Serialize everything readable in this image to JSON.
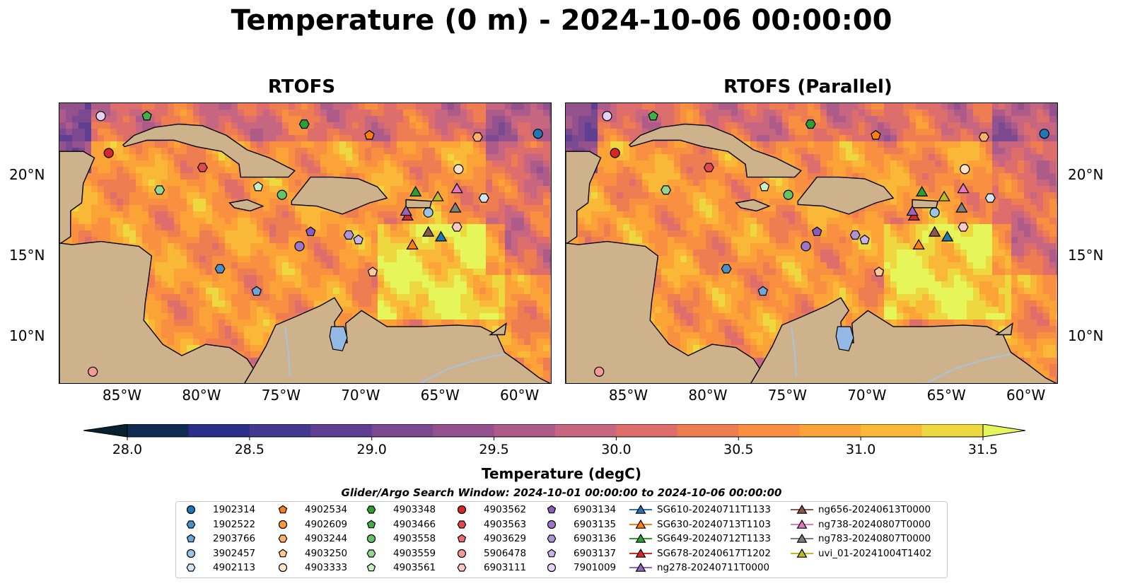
{
  "title": "Temperature (0 m) - 2024-10-06 00:00:00",
  "panels": [
    {
      "title": "RTOFS"
    },
    {
      "title": "RTOFS (Parallel)"
    }
  ],
  "map_extent": {
    "lon": [
      -89,
      -58
    ],
    "lat": [
      7,
      24.5
    ]
  },
  "lon_ticks": [
    "85°W",
    "80°W",
    "75°W",
    "70°W",
    "65°W",
    "60°W"
  ],
  "lat_ticks": [
    "20°N",
    "15°N",
    "10°N"
  ],
  "colors": {
    "land": "#cdb28b",
    "lake": "#94b9e4",
    "river": "#a9c4dc",
    "colormap": [
      "#09202e",
      "#0f2b52",
      "#2a2f87",
      "#45388f",
      "#5f3f91",
      "#7a4990",
      "#93528e",
      "#ad5c89",
      "#c66681",
      "#de6e6c",
      "#ef7d52",
      "#f98f40",
      "#fba337",
      "#f9b837",
      "#eed83f",
      "#e5f55a"
    ]
  },
  "colorbar": {
    "label": "Temperature (degC)",
    "ticks": [
      "28.0",
      "28.5",
      "29.0",
      "29.5",
      "30.0",
      "30.5",
      "31.0",
      "31.5"
    ],
    "range": [
      28.0,
      31.5
    ]
  },
  "legend": {
    "title": "Glider/Argo Search Window: 2024-10-01 00:00:00 to 2024-10-06 00:00:00",
    "items": [
      {
        "label": "1902314",
        "marker": "circle",
        "color": "#1f77b4"
      },
      {
        "label": "1902522",
        "marker": "hexagon",
        "color": "#4a8fc7"
      },
      {
        "label": "2903766",
        "marker": "pentagon",
        "color": "#6ea6d8"
      },
      {
        "label": "3902457",
        "marker": "circle",
        "color": "#9ac3e6"
      },
      {
        "label": "4902113",
        "marker": "hexagon",
        "color": "#d2e5f4"
      },
      {
        "label": "4902534",
        "marker": "pentagon",
        "color": "#ff7f0e"
      },
      {
        "label": "4902609",
        "marker": "circle",
        "color": "#ff9a3c"
      },
      {
        "label": "4903244",
        "marker": "hexagon",
        "color": "#ffb067"
      },
      {
        "label": "4903250",
        "marker": "pentagon",
        "color": "#ffca96"
      },
      {
        "label": "4903333",
        "marker": "circle",
        "color": "#ffe3c8"
      },
      {
        "label": "4903348",
        "marker": "hexagon",
        "color": "#2ca02c"
      },
      {
        "label": "4903466",
        "marker": "pentagon",
        "color": "#3fb047"
      },
      {
        "label": "4903558",
        "marker": "circle",
        "color": "#62c464"
      },
      {
        "label": "4903559",
        "marker": "hexagon",
        "color": "#93d88e"
      },
      {
        "label": "4903561",
        "marker": "pentagon",
        "color": "#c7efbf"
      },
      {
        "label": "4903562",
        "marker": "circle",
        "color": "#d62728"
      },
      {
        "label": "4903563",
        "marker": "hexagon",
        "color": "#e04a4a"
      },
      {
        "label": "4903629",
        "marker": "pentagon",
        "color": "#ea6d6d"
      },
      {
        "label": "5906478",
        "marker": "circle",
        "color": "#f49a96"
      },
      {
        "label": "6903111",
        "marker": "hexagon",
        "color": "#fbc8c4"
      },
      {
        "label": "6903134",
        "marker": "pentagon",
        "color": "#8a5cc0"
      },
      {
        "label": "6903135",
        "marker": "circle",
        "color": "#9d76cc"
      },
      {
        "label": "6903136",
        "marker": "hexagon",
        "color": "#b193d8"
      },
      {
        "label": "6903137",
        "marker": "pentagon",
        "color": "#c9b3e6"
      },
      {
        "label": "7901009",
        "marker": "circle",
        "color": "#e3d2f4"
      },
      {
        "label": "SG610-20240711T1133",
        "marker": "triangle-line",
        "color": "#1f77b4"
      },
      {
        "label": "SG630-20240713T1103",
        "marker": "triangle-line",
        "color": "#ff7f0e"
      },
      {
        "label": "SG649-20240712T1133",
        "marker": "triangle-line",
        "color": "#2ca02c"
      },
      {
        "label": "SG678-20240617T1202",
        "marker": "triangle-line",
        "color": "#d62728"
      },
      {
        "label": "ng278-20240711T0000",
        "marker": "triangle-line",
        "color": "#9467bd"
      },
      {
        "label": "ng656-20240613T0000",
        "marker": "triangle-line",
        "color": "#8c564b"
      },
      {
        "label": "ng738-20240807T0000",
        "marker": "triangle-line",
        "color": "#e377c2"
      },
      {
        "label": "ng783-20240807T0000",
        "marker": "triangle-line",
        "color": "#7f7f7f"
      },
      {
        "label": "uvi_01-20241004T1402",
        "marker": "triangle-line",
        "color": "#bcbd22"
      }
    ]
  },
  "observations": [
    {
      "id": "1902314",
      "lon": -58.9,
      "lat": 22.6
    },
    {
      "id": "1902522",
      "lon": -78.9,
      "lat": 14.2
    },
    {
      "id": "2903766",
      "lon": -76.6,
      "lat": 12.8
    },
    {
      "id": "3902457",
      "lon": -65.8,
      "lat": 17.7
    },
    {
      "id": "4902113",
      "lon": -62.3,
      "lat": 18.6
    },
    {
      "id": "4902534",
      "lon": -69.5,
      "lat": 22.5
    },
    {
      "id": "4903244",
      "lon": -62.7,
      "lat": 22.4
    },
    {
      "id": "4903250",
      "lon": -69.3,
      "lat": 14.0
    },
    {
      "id": "4903333",
      "lon": -63.9,
      "lat": 20.4
    },
    {
      "id": "4903348",
      "lon": -73.6,
      "lat": 23.2
    },
    {
      "id": "4903466",
      "lon": -83.5,
      "lat": 23.7
    },
    {
      "id": "4903558",
      "lon": -75.0,
      "lat": 18.8
    },
    {
      "id": "4903559",
      "lon": -82.7,
      "lat": 19.1
    },
    {
      "id": "4903561",
      "lon": -76.5,
      "lat": 19.3
    },
    {
      "id": "4903562",
      "lon": -85.9,
      "lat": 21.4
    },
    {
      "id": "4903563",
      "lon": -80.0,
      "lat": 20.5
    },
    {
      "id": "5906478",
      "lon": -86.9,
      "lat": 7.8
    },
    {
      "id": "6903111",
      "lon": -64.0,
      "lat": 16.8
    },
    {
      "id": "6903134",
      "lon": -73.2,
      "lat": 16.5
    },
    {
      "id": "6903135",
      "lon": -73.9,
      "lat": 15.6
    },
    {
      "id": "6903136",
      "lon": -70.8,
      "lat": 16.3
    },
    {
      "id": "6903137",
      "lon": -70.2,
      "lat": 16.0
    },
    {
      "id": "7901009",
      "lon": -86.4,
      "lat": 23.7
    },
    {
      "id": "SG610-20240711T1133",
      "lon": -65.0,
      "lat": 16.2
    },
    {
      "id": "SG630-20240713T1103",
      "lon": -66.8,
      "lat": 15.7
    },
    {
      "id": "SG649-20240712T1133",
      "lon": -66.6,
      "lat": 19.0
    },
    {
      "id": "SG678-20240617T1202",
      "lon": -67.1,
      "lat": 17.5
    },
    {
      "id": "ng278-20240711T0000",
      "lon": -67.2,
      "lat": 17.8
    },
    {
      "id": "ng656-20240613T0000",
      "lon": -65.8,
      "lat": 16.5
    },
    {
      "id": "ng738-20240807T0000",
      "lon": -64.0,
      "lat": 19.2
    },
    {
      "id": "ng783-20240807T0000",
      "lon": -64.1,
      "lat": 18.0
    },
    {
      "id": "uvi_01-20241004T1402",
      "lon": -65.2,
      "lat": 18.7
    }
  ]
}
